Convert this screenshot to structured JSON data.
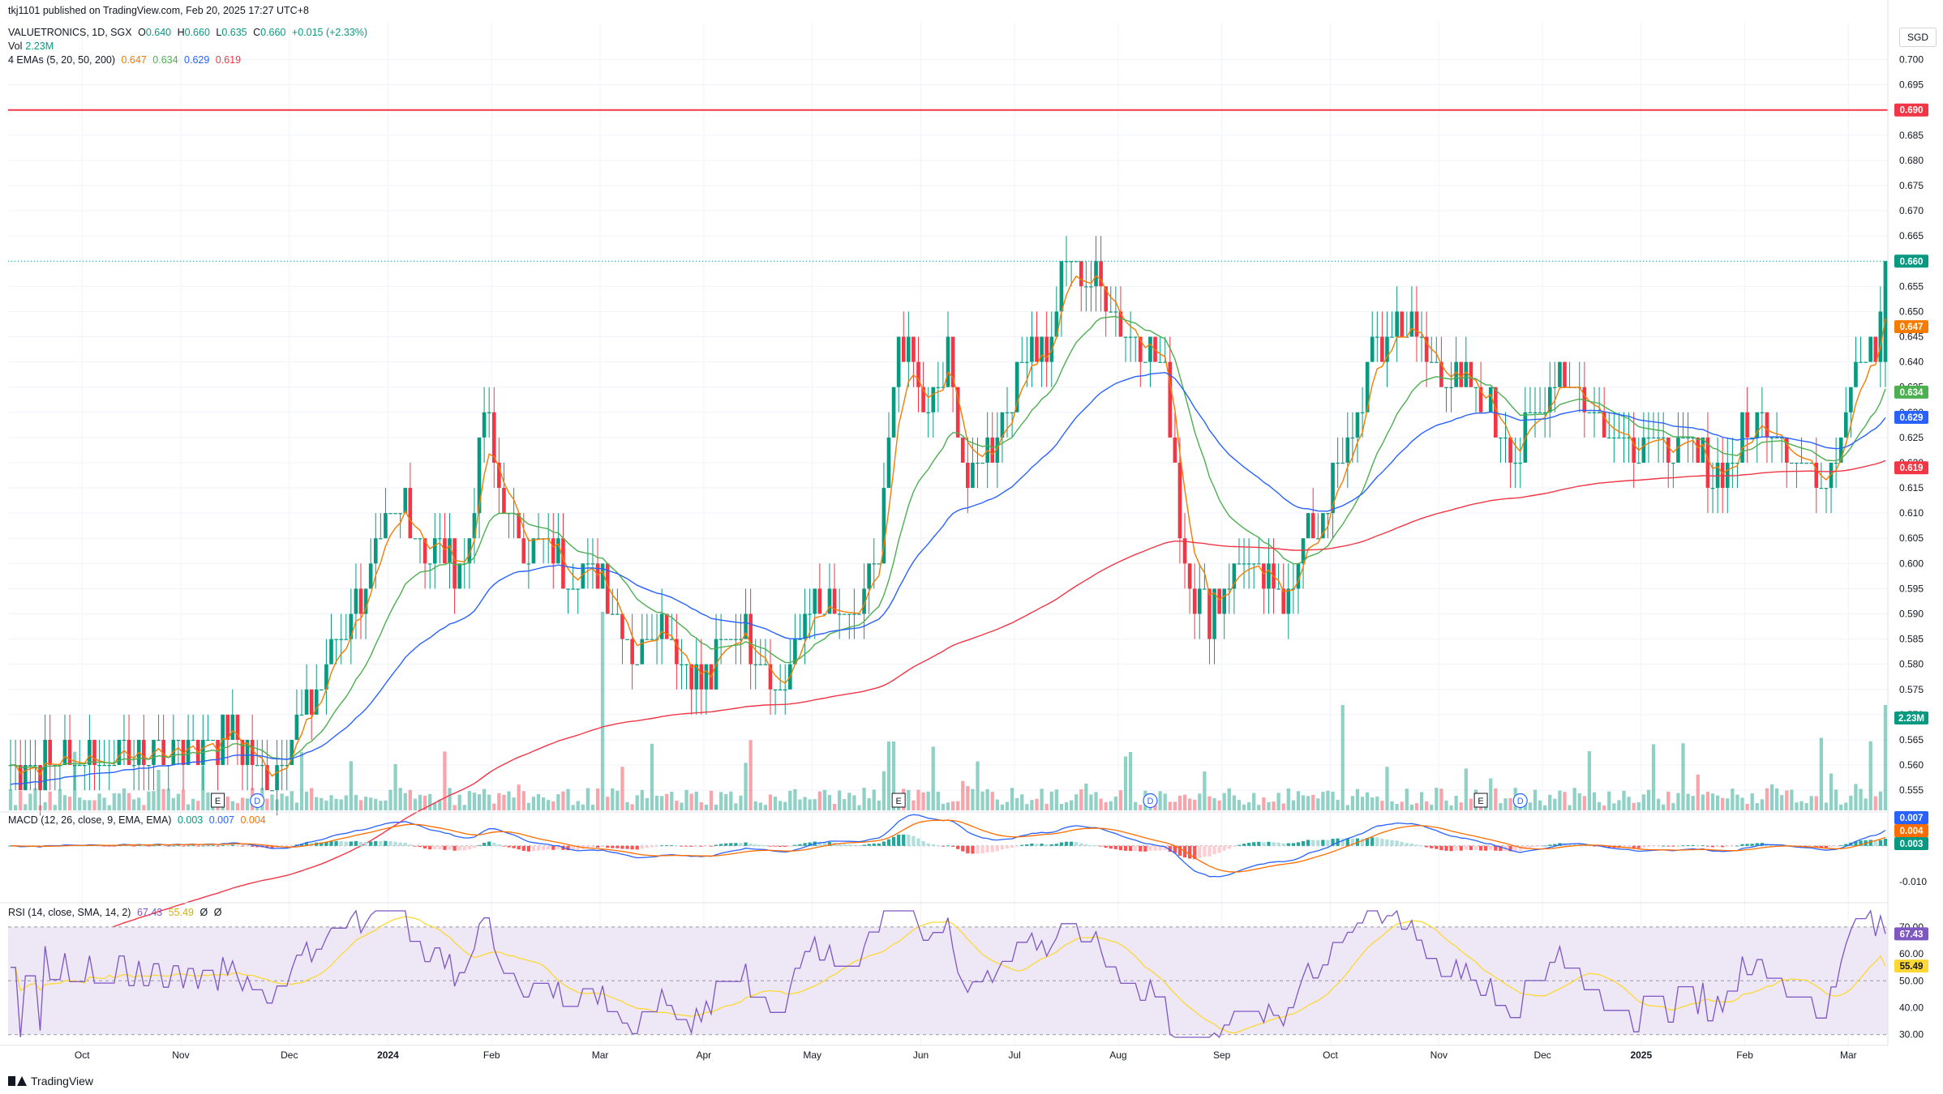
{
  "publisher": "tkj1101 published on TradingView.com, Feb 20, 2025 17:27 UTC+8",
  "header": {
    "symbol": "VALUETRONICS, 1D, SGX",
    "ohlc": [
      {
        "k": "O",
        "v": "0.640"
      },
      {
        "k": "H",
        "v": "0.660"
      },
      {
        "k": "L",
        "v": "0.635"
      },
      {
        "k": "C",
        "v": "0.660"
      }
    ],
    "change": "+0.015 (+2.33%)",
    "vol_label": "Vol",
    "vol_value": "2.23M",
    "ema_label": "4 EMAs (5, 20, 50, 200)",
    "ema_values": [
      "0.647",
      "0.634",
      "0.629",
      "0.619"
    ],
    "macd_label": "MACD (12, 26, close, 9, EMA, EMA)",
    "macd_values": [
      "0.003",
      "0.007",
      "0.004"
    ],
    "rsi_label": "RSI (14, close, SMA, 14, 2)",
    "rsi_values": [
      "67.43",
      "55.49",
      "Ø",
      "Ø"
    ]
  },
  "currency_button": "SGD",
  "watermark": "TradingView",
  "colors": {
    "up": "#089981",
    "down": "#f23645",
    "ema5": "#f57c00",
    "ema20": "#4caf50",
    "ema50": "#2962ff",
    "ema200": "#f23645",
    "macd": "#2962ff",
    "signal": "#ff6d00",
    "rsi": "#7e57c2",
    "rsi_ma": "#fdd835",
    "hline": "#f23645",
    "rsi_band": "#ede7f6"
  },
  "chart_data": {
    "type": "candlestick",
    "x_labels": [
      "Oct",
      "Nov",
      "Dec",
      "2024",
      "Feb",
      "Mar",
      "Apr",
      "May",
      "Jun",
      "Jul",
      "Aug",
      "Sep",
      "Oct",
      "Nov",
      "Dec",
      "2025",
      "Feb",
      "Mar"
    ],
    "price_axis": {
      "ticks": [
        "0.700",
        "0.695",
        "0.690",
        "0.685",
        "0.680",
        "0.675",
        "0.670",
        "0.665",
        "0.660",
        "0.655",
        "0.650",
        "0.645",
        "0.640",
        "0.635",
        "0.630",
        "0.625",
        "0.620",
        "0.615",
        "0.610",
        "0.605",
        "0.600",
        "0.595",
        "0.590",
        "0.585",
        "0.580",
        "0.575",
        "0.570",
        "0.565",
        "0.560",
        "0.555"
      ],
      "range": [
        0.551,
        0.7025
      ]
    },
    "horizontal_line": {
      "value": 0.69,
      "label": "0.690"
    },
    "last_price": {
      "value": 0.66,
      "label": "0.660"
    },
    "ema_labels": [
      {
        "value": 0.647,
        "label": "0.647",
        "color": "#f57c00"
      },
      {
        "value": 0.634,
        "label": "0.634",
        "color": "#4caf50"
      },
      {
        "value": 0.629,
        "label": "0.629",
        "color": "#2962ff"
      },
      {
        "value": 0.619,
        "label": "0.619",
        "color": "#f23645"
      }
    ],
    "volume_label": "2.23M",
    "anchors": [
      {
        "d": 0,
        "c": 0.56
      },
      {
        "d": 30,
        "c": 0.563
      },
      {
        "d": 46,
        "c": 0.566
      },
      {
        "d": 52,
        "c": 0.556
      },
      {
        "d": 62,
        "c": 0.575
      },
      {
        "d": 70,
        "c": 0.592
      },
      {
        "d": 74,
        "c": 0.6
      },
      {
        "d": 80,
        "c": 0.613
      },
      {
        "d": 84,
        "c": 0.602
      },
      {
        "d": 92,
        "c": 0.6
      },
      {
        "d": 96,
        "c": 0.63
      },
      {
        "d": 102,
        "c": 0.605
      },
      {
        "d": 108,
        "c": 0.603
      },
      {
        "d": 112,
        "c": 0.6
      },
      {
        "d": 120,
        "c": 0.598
      },
      {
        "d": 126,
        "c": 0.583
      },
      {
        "d": 132,
        "c": 0.589
      },
      {
        "d": 140,
        "c": 0.575
      },
      {
        "d": 148,
        "c": 0.588
      },
      {
        "d": 156,
        "c": 0.575
      },
      {
        "d": 162,
        "c": 0.592
      },
      {
        "d": 170,
        "c": 0.588
      },
      {
        "d": 176,
        "c": 0.6
      },
      {
        "d": 180,
        "c": 0.645
      },
      {
        "d": 186,
        "c": 0.63
      },
      {
        "d": 190,
        "c": 0.64
      },
      {
        "d": 194,
        "c": 0.617
      },
      {
        "d": 200,
        "c": 0.625
      },
      {
        "d": 206,
        "c": 0.645
      },
      {
        "d": 210,
        "c": 0.64
      },
      {
        "d": 214,
        "c": 0.66
      },
      {
        "d": 220,
        "c": 0.655
      },
      {
        "d": 228,
        "c": 0.645
      },
      {
        "d": 234,
        "c": 0.637
      },
      {
        "d": 238,
        "c": 0.6
      },
      {
        "d": 242,
        "c": 0.59
      },
      {
        "d": 250,
        "c": 0.6
      },
      {
        "d": 258,
        "c": 0.593
      },
      {
        "d": 262,
        "c": 0.603
      },
      {
        "d": 266,
        "c": 0.61
      },
      {
        "d": 270,
        "c": 0.62
      },
      {
        "d": 276,
        "c": 0.64
      },
      {
        "d": 282,
        "c": 0.65
      },
      {
        "d": 288,
        "c": 0.64
      },
      {
        "d": 294,
        "c": 0.635
      },
      {
        "d": 300,
        "c": 0.63
      },
      {
        "d": 306,
        "c": 0.622
      },
      {
        "d": 314,
        "c": 0.64
      },
      {
        "d": 320,
        "c": 0.63
      },
      {
        "d": 330,
        "c": 0.625
      },
      {
        "d": 338,
        "c": 0.622
      },
      {
        "d": 346,
        "c": 0.618
      },
      {
        "d": 354,
        "c": 0.628
      },
      {
        "d": 360,
        "c": 0.625
      },
      {
        "d": 366,
        "c": 0.617
      },
      {
        "d": 370,
        "c": 0.623
      },
      {
        "d": 374,
        "c": 0.643
      },
      {
        "d": 378,
        "c": 0.64
      },
      {
        "d": 380,
        "c": 0.66
      }
    ],
    "total_days": 381,
    "events": [
      {
        "d": 42,
        "label": "E"
      },
      {
        "d": 50,
        "label": "D"
      },
      {
        "d": 180,
        "label": "E"
      },
      {
        "d": 231,
        "label": "D"
      },
      {
        "d": 298,
        "label": "E"
      },
      {
        "d": 306,
        "label": "D"
      }
    ],
    "macd": {
      "ticks": [
        "0.000",
        "-0.010"
      ],
      "range": [
        -0.0155,
        0.0095
      ],
      "labels": [
        "0.007",
        "0.004",
        "0.003"
      ]
    },
    "rsi": {
      "ticks": [
        "70.00",
        "60.00",
        "50.00",
        "40.00",
        "30.00"
      ],
      "range": [
        26,
        79
      ],
      "band": [
        30,
        70
      ],
      "labels": [
        "67.43",
        "55.49"
      ]
    }
  }
}
